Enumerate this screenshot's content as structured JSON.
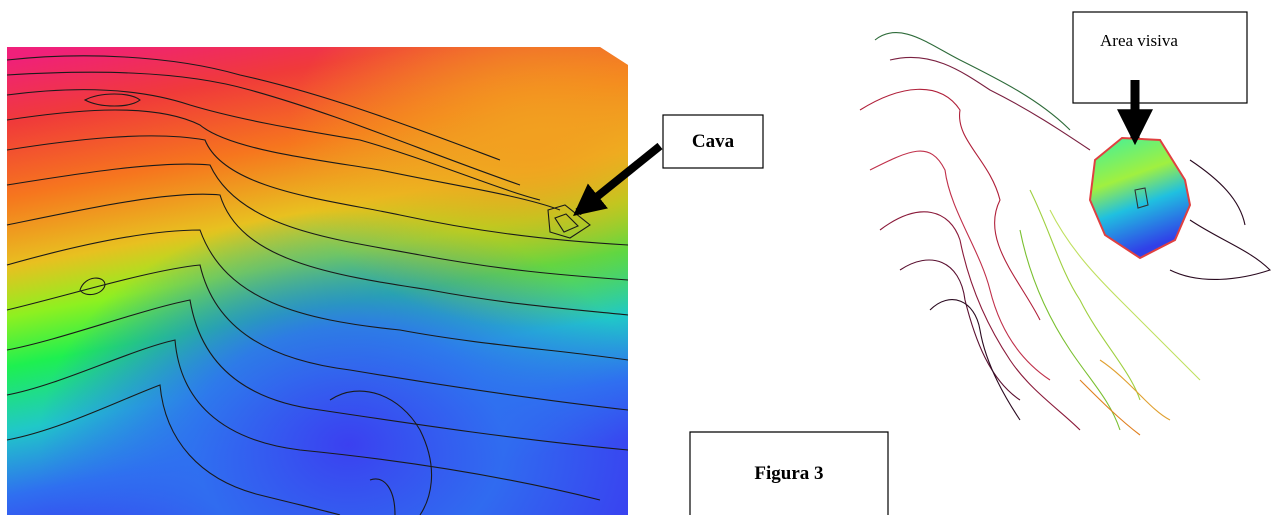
{
  "labels": {
    "cava": "Cava",
    "area_visiva": "Area visiva",
    "figure_caption": "Figura 3"
  }
}
